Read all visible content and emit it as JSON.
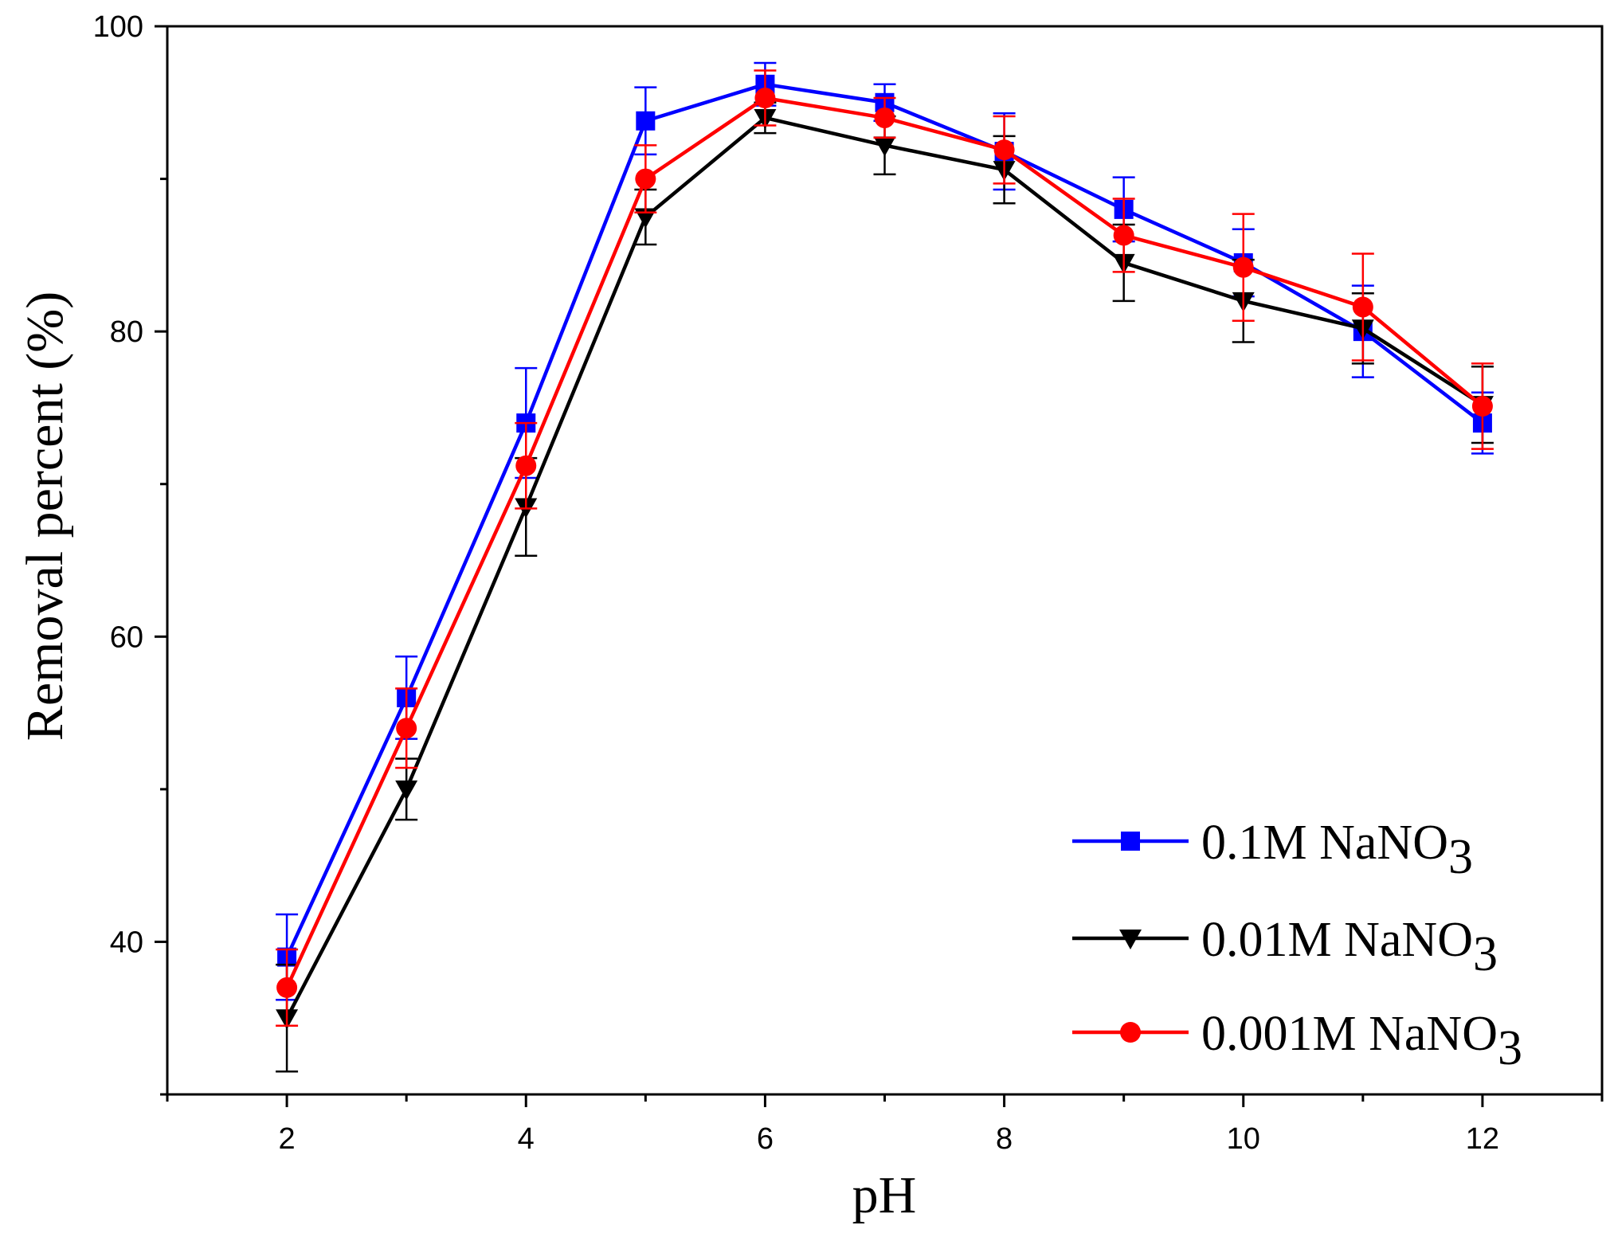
{
  "chart_data": {
    "type": "line",
    "title": "",
    "xlabel": "pH",
    "ylabel": "Removal percent (%)",
    "xlim": [
      1,
      13
    ],
    "ylim": [
      30,
      100
    ],
    "xticks": [
      2,
      4,
      6,
      8,
      10,
      12
    ],
    "yticks": [
      40,
      60,
      80,
      100
    ],
    "grid": false,
    "legend_position": "bottom-right",
    "x": [
      2,
      3,
      4,
      5,
      6,
      7,
      8,
      9,
      10,
      11,
      12
    ],
    "series": [
      {
        "name": "0.1M NaNO3",
        "label_main": "0.1M NaNO",
        "label_sub": "3",
        "color": "#0000ff",
        "marker": "square",
        "values": [
          39,
          56,
          74,
          93.8,
          96.2,
          95,
          91.8,
          88,
          84.5,
          80,
          74
        ],
        "errors": [
          2.8,
          2.7,
          3.6,
          2.2,
          1.4,
          1.2,
          2.5,
          2.1,
          2.2,
          3,
          2
        ]
      },
      {
        "name": "0.01M NaNO3",
        "label_main": "0.01M NaNO",
        "label_sub": "3",
        "color": "#000000",
        "marker": "triangle-down",
        "values": [
          35,
          50,
          68.5,
          87.5,
          94,
          92.2,
          90.6,
          84.5,
          82,
          80.2,
          75.2
        ],
        "errors": [
          3.5,
          2,
          3.2,
          1.8,
          1,
          1.9,
          2.2,
          2.5,
          2.7,
          2.3,
          2.5
        ]
      },
      {
        "name": "0.001M NaNO3",
        "label_main": "0.001M NaNO",
        "label_sub": "3",
        "color": "#ff0000",
        "marker": "circle",
        "values": [
          37,
          54,
          71.2,
          90,
          95.3,
          94,
          91.9,
          86.3,
          84.2,
          81.6,
          75.1
        ],
        "errors": [
          2.5,
          2.6,
          2.8,
          2.2,
          1.8,
          1.3,
          2.2,
          2.4,
          3.5,
          3.5,
          2.8
        ]
      }
    ]
  }
}
